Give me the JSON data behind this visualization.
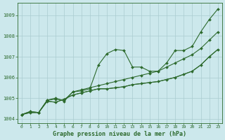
{
  "bg_color": "#cce8ec",
  "grid_color": "#aaccd0",
  "line_color": "#2d6a2d",
  "marker_color": "#2d6a2d",
  "xlabel": "Graphe pression niveau de la mer (hPa)",
  "ylim": [
    1003.8,
    1009.6
  ],
  "xlim": [
    -0.5,
    23.5
  ],
  "yticks": [
    1004,
    1005,
    1006,
    1007,
    1008,
    1009
  ],
  "xticks": [
    0,
    1,
    2,
    3,
    4,
    5,
    6,
    7,
    8,
    9,
    10,
    11,
    12,
    13,
    14,
    15,
    16,
    17,
    18,
    19,
    20,
    21,
    22,
    23
  ],
  "series": [
    [
      1004.2,
      1004.35,
      1004.3,
      1004.9,
      1004.95,
      1004.9,
      1005.3,
      1005.35,
      1005.45,
      1006.6,
      1007.15,
      1007.35,
      1007.3,
      1006.5,
      1006.5,
      1006.3,
      1006.3,
      1006.7,
      1007.3,
      1007.3,
      1007.5,
      1008.2,
      1008.8,
      1009.3
    ],
    [
      1004.2,
      1004.3,
      1004.3,
      1004.85,
      1004.8,
      1004.95,
      1005.15,
      1005.25,
      1005.35,
      1005.45,
      1005.45,
      1005.5,
      1005.55,
      1005.65,
      1005.7,
      1005.75,
      1005.8,
      1005.9,
      1006.0,
      1006.15,
      1006.3,
      1006.6,
      1007.0,
      1007.35
    ],
    [
      1004.2,
      1004.3,
      1004.3,
      1004.85,
      1004.8,
      1004.95,
      1005.15,
      1005.25,
      1005.35,
      1005.45,
      1005.45,
      1005.5,
      1005.55,
      1005.65,
      1005.7,
      1005.75,
      1005.8,
      1005.9,
      1006.0,
      1006.15,
      1006.3,
      1006.6,
      1007.0,
      1007.35
    ],
    [
      1004.2,
      1004.35,
      1004.3,
      1004.9,
      1005.0,
      1004.85,
      1005.3,
      1005.4,
      1005.5,
      1005.6,
      1005.7,
      1005.8,
      1005.9,
      1006.0,
      1006.1,
      1006.2,
      1006.3,
      1006.5,
      1006.7,
      1006.9,
      1007.1,
      1007.4,
      1007.8,
      1008.2
    ]
  ],
  "marker_series": [
    0,
    1,
    3
  ],
  "no_marker_series": [
    2
  ]
}
